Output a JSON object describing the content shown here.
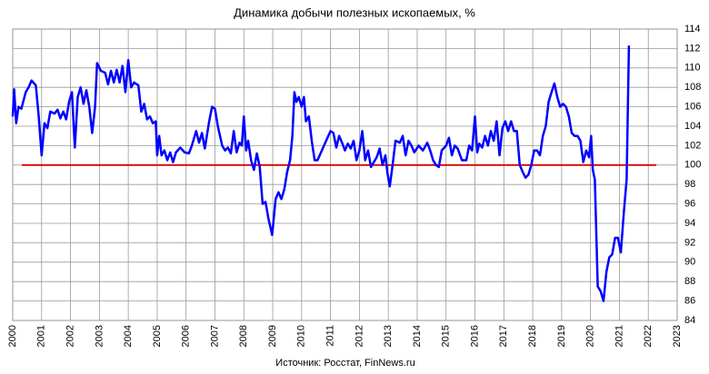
{
  "chart_data": {
    "type": "line",
    "title": "Динамика добычи полезных ископаемых, %",
    "source": "Источник: Росстат, FinNews.ru",
    "color": "#0000ff",
    "reference_line": {
      "value": 100,
      "color": "#e00000"
    },
    "xlim": [
      2000,
      2023
    ],
    "xticks": [
      2000,
      2001,
      2002,
      2003,
      2004,
      2005,
      2006,
      2007,
      2008,
      2009,
      2010,
      2011,
      2012,
      2013,
      2014,
      2015,
      2016,
      2017,
      2018,
      2019,
      2020,
      2021,
      2022,
      2023
    ],
    "ylim": [
      84,
      114
    ],
    "yticks": [
      84,
      86,
      88,
      90,
      92,
      94,
      96,
      98,
      100,
      102,
      104,
      106,
      108,
      110,
      112,
      114
    ],
    "grid": true,
    "x": [
      2000.0,
      2000.05,
      2000.12,
      2000.2,
      2000.3,
      2000.45,
      2000.55,
      2000.65,
      2000.8,
      2000.9,
      2001.0,
      2001.1,
      2001.2,
      2001.3,
      2001.45,
      2001.55,
      2001.65,
      2001.75,
      2001.85,
      2001.95,
      2002.05,
      2002.15,
      2002.25,
      2002.35,
      2002.45,
      2002.55,
      2002.65,
      2002.75,
      2002.85,
      2002.92,
      2003.05,
      2003.2,
      2003.3,
      2003.4,
      2003.5,
      2003.6,
      2003.7,
      2003.8,
      2003.9,
      2004.0,
      2004.1,
      2004.2,
      2004.35,
      2004.45,
      2004.55,
      2004.65,
      2004.75,
      2004.85,
      2004.95,
      2005.0,
      2005.07,
      2005.15,
      2005.25,
      2005.35,
      2005.45,
      2005.55,
      2005.65,
      2005.8,
      2005.95,
      2006.1,
      2006.2,
      2006.35,
      2006.45,
      2006.55,
      2006.65,
      2006.8,
      2006.9,
      2007.0,
      2007.1,
      2007.25,
      2007.35,
      2007.45,
      2007.55,
      2007.65,
      2007.75,
      2007.85,
      2007.93,
      2008.0,
      2008.08,
      2008.15,
      2008.25,
      2008.35,
      2008.45,
      2008.55,
      2008.65,
      2008.75,
      2008.85,
      2008.98,
      2009.1,
      2009.2,
      2009.3,
      2009.4,
      2009.5,
      2009.6,
      2009.68,
      2009.75,
      2009.82,
      2009.9,
      2010.0,
      2010.08,
      2010.15,
      2010.25,
      2010.35,
      2010.45,
      2010.55,
      2010.7,
      2010.85,
      2011.0,
      2011.1,
      2011.2,
      2011.3,
      2011.4,
      2011.5,
      2011.6,
      2011.7,
      2011.8,
      2011.9,
      2012.0,
      2012.1,
      2012.2,
      2012.3,
      2012.4,
      2012.5,
      2012.6,
      2012.7,
      2012.8,
      2012.9,
      2012.97,
      2013.05,
      2013.15,
      2013.25,
      2013.4,
      2013.5,
      2013.6,
      2013.7,
      2013.8,
      2013.9,
      2014.05,
      2014.2,
      2014.35,
      2014.45,
      2014.55,
      2014.65,
      2014.75,
      2014.85,
      2015.0,
      2015.1,
      2015.2,
      2015.3,
      2015.4,
      2015.55,
      2015.7,
      2015.8,
      2015.9,
      2016.0,
      2016.08,
      2016.15,
      2016.25,
      2016.35,
      2016.45,
      2016.55,
      2016.65,
      2016.75,
      2016.85,
      2016.95,
      2017.05,
      2017.15,
      2017.25,
      2017.35,
      2017.45,
      2017.55,
      2017.65,
      2017.75,
      2017.85,
      2017.95,
      2018.05,
      2018.15,
      2018.25,
      2018.35,
      2018.45,
      2018.55,
      2018.65,
      2018.75,
      2018.85,
      2018.95,
      2019.05,
      2019.15,
      2019.25,
      2019.35,
      2019.45,
      2019.55,
      2019.65,
      2019.75,
      2019.85,
      2019.95,
      2020.02,
      2020.08,
      2020.15,
      2020.25,
      2020.35,
      2020.45,
      2020.55,
      2020.65,
      2020.75,
      2020.85,
      2020.95,
      2021.05,
      2021.15,
      2021.25,
      2021.33
    ],
    "values": [
      105,
      107.8,
      104.3,
      106,
      105.8,
      107.5,
      108,
      108.7,
      108.2,
      105,
      101,
      104.3,
      103.8,
      105.5,
      105.3,
      105.7,
      104.8,
      105.5,
      104.7,
      106.5,
      107.5,
      101.8,
      107,
      108,
      106.3,
      107.7,
      106,
      103.3,
      106,
      110.5,
      109.7,
      109.5,
      108.3,
      109.7,
      108.5,
      109.8,
      108.5,
      110.2,
      107.5,
      110.8,
      108,
      108.5,
      108.2,
      105.5,
      106.3,
      104.7,
      105,
      104.3,
      104.5,
      101,
      103,
      101,
      101.5,
      100.5,
      101.3,
      100.3,
      101.3,
      101.8,
      101.3,
      101.2,
      102,
      103.5,
      102.3,
      103.3,
      101.7,
      104.5,
      106,
      105.8,
      104,
      102,
      101.5,
      101.8,
      101.2,
      103.5,
      101.3,
      102.3,
      102,
      105,
      101.5,
      102.5,
      100.5,
      99.5,
      101.2,
      99.8,
      96,
      96.2,
      94.5,
      92.8,
      96.5,
      97.2,
      96.5,
      97.5,
      99.3,
      100.5,
      103,
      107.5,
      106.5,
      107,
      106,
      107,
      104.5,
      105,
      102.5,
      100.5,
      100.5,
      101.5,
      102.5,
      103.5,
      103.3,
      101.8,
      103,
      102.3,
      101.5,
      102.2,
      101.7,
      102.5,
      100.5,
      101.5,
      103.5,
      100.5,
      101.5,
      99.8,
      100.3,
      100.8,
      101.7,
      100,
      101,
      99.2,
      97.8,
      100,
      102.5,
      102.3,
      103,
      101,
      102.5,
      102,
      101.3,
      102,
      101.5,
      102.3,
      101.5,
      100.5,
      100,
      99.8,
      101.5,
      102,
      102.8,
      101,
      102,
      101.7,
      100.5,
      100.5,
      102,
      101.5,
      105,
      101.3,
      102.2,
      101.8,
      103,
      102,
      103.5,
      102.5,
      104.5,
      101,
      103.8,
      104.5,
      103.5,
      104.5,
      103.5,
      103.5,
      100,
      99.3,
      98.7,
      99,
      100,
      101.5,
      101.5,
      101,
      103,
      104,
      106.5,
      107.5,
      108.4,
      107,
      106,
      106.3,
      106,
      105,
      103.3,
      103,
      103,
      102.5,
      100.3,
      101.5,
      100.8,
      103,
      99.5,
      98.5,
      87.5,
      87,
      86,
      89,
      90.5,
      90.8,
      92.5,
      92.5,
      91,
      95,
      98.5,
      112.3
    ]
  }
}
